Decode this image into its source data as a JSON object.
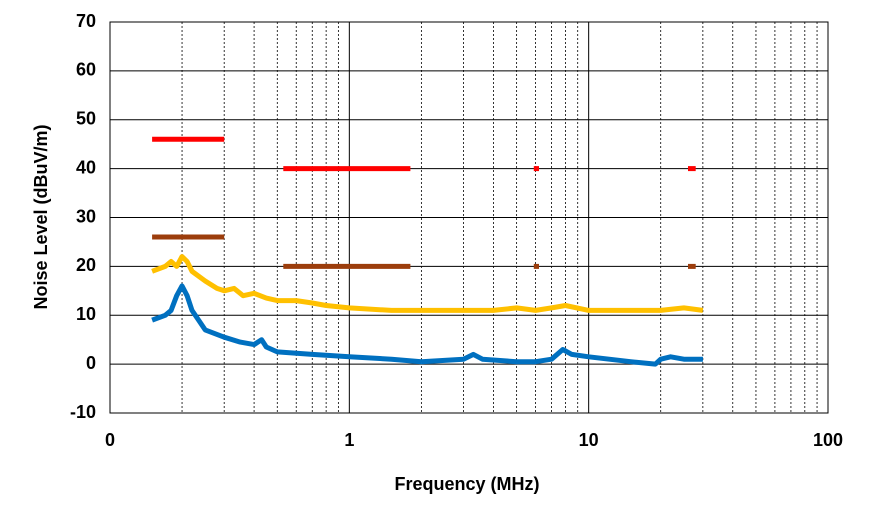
{
  "chart_data": {
    "type": "line",
    "xlabel": "Frequency (MHz)",
    "ylabel": "Noise Level (dBuV/m)",
    "xscale": "log",
    "grid": true,
    "xlim": [
      0.1,
      100
    ],
    "xticks": [
      {
        "value": 0.1,
        "label": "0"
      },
      1,
      10,
      100
    ],
    "ylim": [
      -10,
      70
    ],
    "yticks": [
      -10,
      0,
      10,
      20,
      30,
      40,
      50,
      60,
      70
    ],
    "series": [
      {
        "color": "#ff0000",
        "x": [
          0.15,
          0.3
        ],
        "values": [
          46,
          46
        ]
      },
      {
        "color": "#ff0000",
        "x": [
          0.53,
          1.8
        ],
        "values": [
          40,
          40
        ]
      },
      {
        "color": "#ff0000",
        "x": [
          5.9,
          6.2
        ],
        "values": [
          40,
          40
        ]
      },
      {
        "color": "#ff0000",
        "x": [
          26,
          28
        ],
        "values": [
          40,
          40
        ]
      },
      {
        "color": "#9c3d0c",
        "x": [
          0.15,
          0.3
        ],
        "values": [
          26,
          26
        ]
      },
      {
        "color": "#9c3d0c",
        "x": [
          0.53,
          1.8
        ],
        "values": [
          20,
          20
        ]
      },
      {
        "color": "#9c3d0c",
        "x": [
          5.9,
          6.2
        ],
        "values": [
          20,
          20
        ]
      },
      {
        "color": "#9c3d0c",
        "x": [
          26,
          28
        ],
        "values": [
          20,
          20
        ]
      },
      {
        "color": "#ffc000",
        "x": [
          0.15,
          0.17,
          0.18,
          0.19,
          0.2,
          0.21,
          0.22,
          0.25,
          0.28,
          0.3,
          0.33,
          0.36,
          0.4,
          0.45,
          0.5,
          0.6,
          0.7,
          0.8,
          1,
          1.5,
          2,
          3,
          4,
          5,
          6,
          7,
          8,
          10,
          15,
          20,
          25,
          30
        ],
        "values": [
          19,
          20,
          21,
          20,
          22,
          21,
          19,
          17,
          15.5,
          15,
          15.5,
          14,
          14.5,
          13.5,
          13,
          13,
          12.5,
          12,
          11.5,
          11,
          11,
          11,
          11,
          11.5,
          11,
          11.5,
          12,
          11,
          11,
          11,
          11.5,
          11
        ]
      },
      {
        "color": "#0070c0",
        "x": [
          0.15,
          0.17,
          0.18,
          0.19,
          0.2,
          0.21,
          0.22,
          0.25,
          0.3,
          0.35,
          0.4,
          0.43,
          0.45,
          0.5,
          0.7,
          1,
          1.5,
          2,
          3,
          3.3,
          3.6,
          5,
          6,
          7,
          7.8,
          8.5,
          10,
          15,
          19,
          20,
          22,
          25,
          30
        ],
        "values": [
          9,
          10,
          11,
          14,
          16,
          14,
          11,
          7,
          5.5,
          4.5,
          4,
          5,
          3.5,
          2.5,
          2,
          1.5,
          1,
          0.5,
          1,
          2,
          1,
          0.5,
          0.5,
          1,
          3,
          2,
          1.5,
          0.5,
          0,
          1,
          1.5,
          1,
          1
        ]
      }
    ]
  }
}
